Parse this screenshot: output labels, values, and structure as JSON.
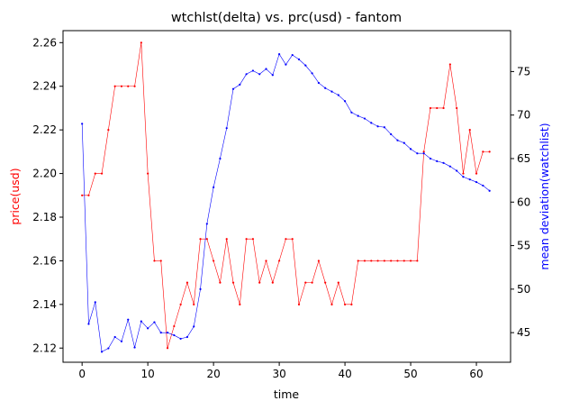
{
  "chart_data": {
    "type": "line",
    "title": "wtchlst(delta) vs. prc(usd) - fantom",
    "xlabel": "time",
    "ylabel_left": "price(usd)",
    "ylabel_right": "mean deviation(watchlist)",
    "x": [
      0,
      1,
      2,
      3,
      4,
      5,
      6,
      7,
      8,
      9,
      10,
      11,
      12,
      13,
      14,
      15,
      16,
      17,
      18,
      19,
      20,
      21,
      22,
      23,
      24,
      25,
      26,
      27,
      28,
      29,
      30,
      31,
      32,
      33,
      34,
      35,
      36,
      37,
      38,
      39,
      40,
      41,
      42,
      43,
      44,
      45,
      46,
      47,
      48,
      49,
      50,
      51,
      52,
      53,
      54,
      55,
      56,
      57,
      58,
      59,
      60,
      61,
      62
    ],
    "xlim": [
      -2.9,
      65.2
    ],
    "xticks": [
      0,
      10,
      20,
      30,
      40,
      50,
      60
    ],
    "ylim_left": [
      2.1135,
      2.2655
    ],
    "yticks_left": [
      2.12,
      2.14,
      2.16,
      2.18,
      2.2,
      2.22,
      2.24,
      2.26
    ],
    "ylim_right": [
      41.6,
      79.7
    ],
    "yticks_right": [
      45,
      50,
      55,
      60,
      65,
      70,
      75
    ],
    "grid": false,
    "series": [
      {
        "axis": "left",
        "color": "#ff0000",
        "values": [
          2.19,
          2.19,
          2.2,
          2.2,
          2.22,
          2.24,
          2.24,
          2.24,
          2.24,
          2.26,
          2.2,
          2.16,
          2.16,
          2.12,
          2.13,
          2.14,
          2.15,
          2.14,
          2.17,
          2.17,
          2.16,
          2.15,
          2.17,
          2.15,
          2.14,
          2.17,
          2.17,
          2.15,
          2.16,
          2.15,
          2.16,
          2.17,
          2.17,
          2.14,
          2.15,
          2.15,
          2.16,
          2.15,
          2.14,
          2.15,
          2.14,
          2.14,
          2.16,
          2.16,
          2.16,
          2.16,
          2.16,
          2.16,
          2.16,
          2.16,
          2.16,
          2.16,
          2.21,
          2.23,
          2.23,
          2.23,
          2.25,
          2.23,
          2.2,
          2.22,
          2.2,
          2.21,
          2.21
        ]
      },
      {
        "axis": "right",
        "color": "#0000ff",
        "values": [
          69.0,
          46.0,
          48.5,
          42.8,
          43.2,
          44.5,
          44.0,
          46.5,
          43.3,
          46.3,
          45.5,
          46.2,
          45.0,
          45.0,
          44.7,
          44.3,
          44.5,
          45.7,
          50.0,
          57.5,
          61.7,
          65.0,
          68.5,
          73.0,
          73.5,
          74.7,
          75.1,
          74.7,
          75.3,
          74.6,
          77.0,
          75.8,
          76.9,
          76.4,
          75.7,
          74.8,
          73.7,
          73.1,
          72.7,
          72.3,
          71.6,
          70.3,
          69.9,
          69.6,
          69.1,
          68.7,
          68.6,
          67.8,
          67.1,
          66.8,
          66.1,
          65.6,
          65.6,
          65.0,
          64.7,
          64.5,
          64.1,
          63.6,
          62.9,
          62.6,
          62.3,
          61.9,
          61.3
        ]
      }
    ]
  }
}
